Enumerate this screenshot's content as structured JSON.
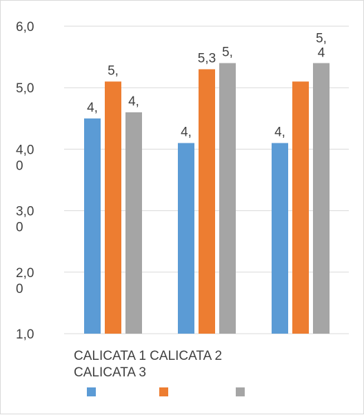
{
  "chart_data": {
    "type": "bar",
    "title": "",
    "xlabel": "",
    "ylabel": "",
    "ylim": [
      1.0,
      6.0
    ],
    "y_ticks": [
      {
        "value": 6.0,
        "lines": [
          "6,0"
        ]
      },
      {
        "value": 5.0,
        "lines": [
          "5,0"
        ]
      },
      {
        "value": 4.0,
        "lines": [
          "4,0",
          "0"
        ]
      },
      {
        "value": 3.0,
        "lines": [
          "3,0",
          "0"
        ]
      },
      {
        "value": 2.0,
        "lines": [
          "2,0",
          "0"
        ]
      },
      {
        "value": 1.0,
        "lines": [
          "1,0"
        ]
      }
    ],
    "grid": true,
    "categories": [
      "CALICATA 1",
      "CALICATA 2",
      "CALICATA 3"
    ],
    "category_lines": [
      "CALICATA 1 CALICATA 2",
      "CALICATA 3"
    ],
    "series": [
      {
        "color": "#5b9bd5",
        "values": [
          4.5,
          4.1,
          4.1
        ],
        "labels": [
          "4,",
          "4,",
          "4,"
        ]
      },
      {
        "color": "#ed7d31",
        "values": [
          5.1,
          5.3,
          5.1
        ],
        "labels": [
          "5,",
          "5,3",
          ""
        ]
      },
      {
        "color": "#a5a5a5",
        "values": [
          4.6,
          5.4,
          5.4
        ],
        "labels": [
          "4,",
          "5,",
          "5,\n4"
        ]
      }
    ],
    "legend": {
      "placement": "bottom"
    }
  }
}
